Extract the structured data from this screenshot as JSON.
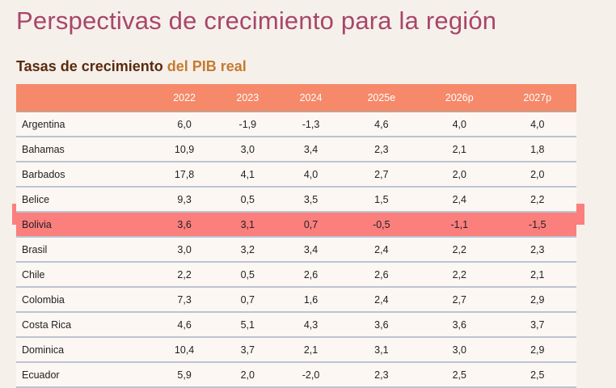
{
  "title": "Perspectivas de crecimiento para la región",
  "subtitle": {
    "part1": "Tasas de crecimiento ",
    "part2": "del PIB real"
  },
  "columns": [
    "",
    "2022",
    "2023",
    "2024",
    "2025e",
    "2026p",
    "2027p"
  ],
  "highlight_color": "#fa7f7d",
  "rows": [
    {
      "name": "Argentina",
      "values": [
        "6,0",
        "-1,9",
        "-1,3",
        "4,6",
        "4,0",
        "4,0"
      ]
    },
    {
      "name": "Bahamas",
      "values": [
        "10,9",
        "3,0",
        "3,4",
        "2,3",
        "2,1",
        "1,8"
      ]
    },
    {
      "name": "Barbados",
      "values": [
        "17,8",
        "4,1",
        "4,0",
        "2,7",
        "2,0",
        "2,0"
      ]
    },
    {
      "name": "Belice",
      "values": [
        "9,3",
        "0,5",
        "3,5",
        "1,5",
        "2,4",
        "2,2"
      ]
    },
    {
      "name": "Bolivia",
      "highlight": true,
      "values": [
        "3,6",
        "3,1",
        "0,7",
        "-0,5",
        "-1,1",
        "-1,5"
      ]
    },
    {
      "name": "Brasil",
      "values": [
        "3,0",
        "3,2",
        "3,4",
        "2,4",
        "2,2",
        "2,3"
      ]
    },
    {
      "name": "Chile",
      "values": [
        "2,2",
        "0,5",
        "2,6",
        "2,6",
        "2,2",
        "2,1"
      ]
    },
    {
      "name": "Colombia",
      "values": [
        "7,3",
        "0,7",
        "1,6",
        "2,4",
        "2,7",
        "2,9"
      ]
    },
    {
      "name": "Costa Rica",
      "values": [
        "4,6",
        "5,1",
        "4,3",
        "3,6",
        "3,6",
        "3,7"
      ]
    },
    {
      "name": "Dominica",
      "values": [
        "10,4",
        "3,7",
        "2,1",
        "3,1",
        "3,0",
        "2,9"
      ]
    },
    {
      "name": "Ecuador",
      "values": [
        "5,9",
        "2,0",
        "-2,0",
        "2,3",
        "2,5",
        "2,5"
      ]
    }
  ]
}
